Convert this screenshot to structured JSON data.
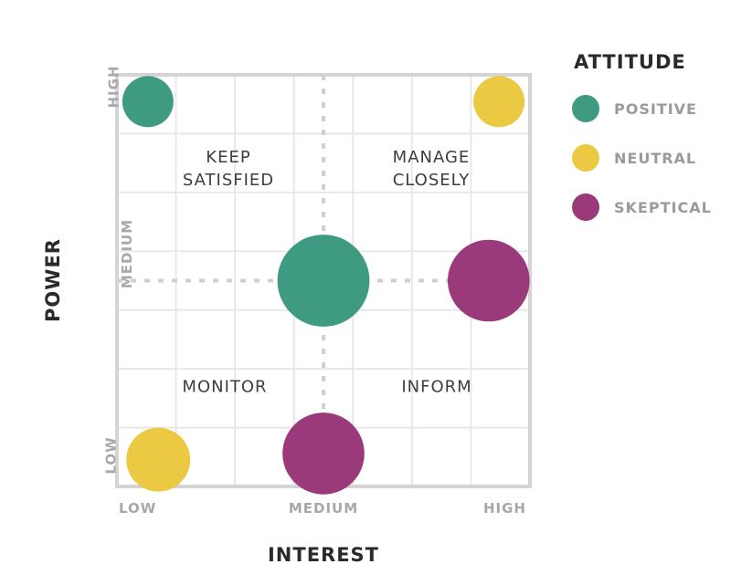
{
  "chart_data": {
    "type": "scatter",
    "xlabel": "INTEREST",
    "ylabel": "POWER",
    "x_ticks": [
      "LOW",
      "MEDIUM",
      "HIGH"
    ],
    "y_ticks": [
      "LOW",
      "MEDIUM",
      "HIGH"
    ],
    "xlim": [
      0,
      2
    ],
    "ylim": [
      0,
      2
    ],
    "quadrants": {
      "top_left": "KEEP\nSATISFIED",
      "top_right": "MANAGE\nCLOSELY",
      "bottom_left": "MONITOR",
      "bottom_right": "INFORM"
    },
    "legend": {
      "title": "ATTITUDE",
      "placement": "top-right",
      "items": [
        {
          "label": "POSITIVE",
          "color": "#3f9a82"
        },
        {
          "label": "NEUTRAL",
          "color": "#ebc942"
        },
        {
          "label": "SKEPTICAL",
          "color": "#9b3a7a"
        }
      ]
    },
    "points": [
      {
        "x": 0.15,
        "y": 1.87,
        "attitude": "POSITIVE",
        "size": 1.0
      },
      {
        "x": 1.85,
        "y": 1.87,
        "attitude": "NEUTRAL",
        "size": 1.0
      },
      {
        "x": 1.0,
        "y": 1.0,
        "attitude": "POSITIVE",
        "size": 1.8
      },
      {
        "x": 1.8,
        "y": 1.0,
        "attitude": "SKEPTICAL",
        "size": 1.6
      },
      {
        "x": 0.2,
        "y": 0.13,
        "attitude": "NEUTRAL",
        "size": 1.25
      },
      {
        "x": 1.0,
        "y": 0.16,
        "attitude": "SKEPTICAL",
        "size": 1.6
      }
    ],
    "grid": true
  }
}
